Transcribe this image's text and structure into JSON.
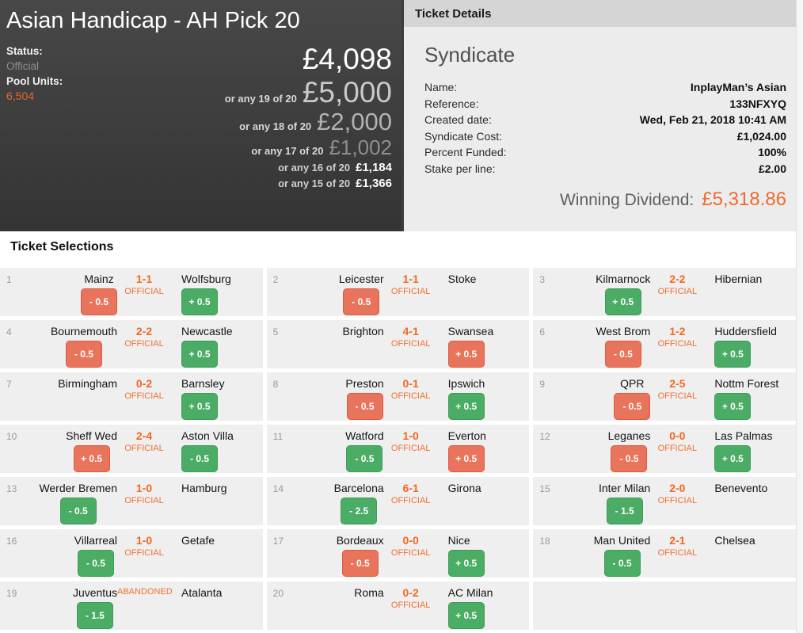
{
  "pool_header": {
    "title": "Asian Handicap - AH Pick 20",
    "status_label": "Status:",
    "status_value": "Official",
    "pool_units_label": "Pool Units:",
    "pool_units_value": "6,504",
    "main_dividend": "£4,098",
    "consolations": [
      {
        "prefix": "or any 19 of 20",
        "amount": "£5,000"
      },
      {
        "prefix": "or any 18 of 20",
        "amount": "£2,000"
      },
      {
        "prefix": "or any 17 of 20",
        "amount": "£1,002"
      },
      {
        "prefix": "or any 16 of 20",
        "amount": "£1,184"
      },
      {
        "prefix": "or any 15 of 20",
        "amount": "£1,366"
      }
    ]
  },
  "ticket_details": {
    "header": "Ticket Details",
    "section_title": "Syndicate",
    "fields": [
      {
        "label": "Name:",
        "value": "InplayMan’s Asian"
      },
      {
        "label": "Reference:",
        "value": "133NFXYQ"
      },
      {
        "label": "Created date:",
        "value": "Wed, Feb 21, 2018 10:41 AM"
      },
      {
        "label": "Syndicate Cost:",
        "value": "£1,024.00"
      },
      {
        "label": "Percent Funded:",
        "value": "100%"
      },
      {
        "label": "Stake per line:",
        "value": "£2.00"
      }
    ],
    "winning_dividend_label": "Winning Dividend:",
    "winning_dividend_value": "£5,318.86"
  },
  "selections": {
    "header": "Ticket Selections",
    "items": [
      {
        "num": "1",
        "home": "Mainz",
        "score": "1-1",
        "status": "OFFICIAL",
        "away": "Wolfsburg",
        "home_badge": {
          "text": "- 0.5",
          "type": "red"
        },
        "away_badge": {
          "text": "+ 0.5",
          "type": "green"
        }
      },
      {
        "num": "2",
        "home": "Leicester",
        "score": "1-1",
        "status": "OFFICIAL",
        "away": "Stoke",
        "home_badge": {
          "text": "- 0.5",
          "type": "red"
        },
        "away_badge": null
      },
      {
        "num": "3",
        "home": "Kilmarnock",
        "score": "2-2",
        "status": "OFFICIAL",
        "away": "Hibernian",
        "home_badge": {
          "text": "+ 0.5",
          "type": "green"
        },
        "away_badge": null
      },
      {
        "num": "4",
        "home": "Bournemouth",
        "score": "2-2",
        "status": "OFFICIAL",
        "away": "Newcastle",
        "home_badge": {
          "text": "- 0.5",
          "type": "red"
        },
        "away_badge": {
          "text": "+ 0.5",
          "type": "green"
        }
      },
      {
        "num": "5",
        "home": "Brighton",
        "score": "4-1",
        "status": "OFFICIAL",
        "away": "Swansea",
        "home_badge": null,
        "away_badge": {
          "text": "+ 0.5",
          "type": "red"
        }
      },
      {
        "num": "6",
        "home": "West Brom",
        "score": "1-2",
        "status": "OFFICIAL",
        "away": "Huddersfield",
        "home_badge": {
          "text": "- 0.5",
          "type": "red"
        },
        "away_badge": {
          "text": "+ 0.5",
          "type": "green"
        }
      },
      {
        "num": "7",
        "home": "Birmingham",
        "score": "0-2",
        "status": "OFFICIAL",
        "away": "Barnsley",
        "home_badge": null,
        "away_badge": {
          "text": "+ 0.5",
          "type": "green"
        }
      },
      {
        "num": "8",
        "home": "Preston",
        "score": "0-1",
        "status": "OFFICIAL",
        "away": "Ipswich",
        "home_badge": {
          "text": "- 0.5",
          "type": "red"
        },
        "away_badge": {
          "text": "+ 0.5",
          "type": "green"
        }
      },
      {
        "num": "9",
        "home": "QPR",
        "score": "2-5",
        "status": "OFFICIAL",
        "away": "Nottm Forest",
        "home_badge": {
          "text": "- 0.5",
          "type": "red"
        },
        "away_badge": {
          "text": "+ 0.5",
          "type": "green"
        }
      },
      {
        "num": "10",
        "home": "Sheff Wed",
        "score": "2-4",
        "status": "OFFICIAL",
        "away": "Aston Villa",
        "home_badge": {
          "text": "+ 0.5",
          "type": "red"
        },
        "away_badge": {
          "text": "- 0.5",
          "type": "green"
        }
      },
      {
        "num": "11",
        "home": "Watford",
        "score": "1-0",
        "status": "OFFICIAL",
        "away": "Everton",
        "home_badge": {
          "text": "- 0.5",
          "type": "green"
        },
        "away_badge": {
          "text": "+ 0.5",
          "type": "red"
        }
      },
      {
        "num": "12",
        "home": "Leganes",
        "score": "0-0",
        "status": "OFFICIAL",
        "away": "Las Palmas",
        "home_badge": {
          "text": "- 0.5",
          "type": "red"
        },
        "away_badge": {
          "text": "+ 0.5",
          "type": "green"
        }
      },
      {
        "num": "13",
        "home": "Werder Bremen",
        "score": "1-0",
        "status": "OFFICIAL",
        "away": "Hamburg",
        "home_badge": {
          "text": "- 0.5",
          "type": "green"
        },
        "away_badge": null
      },
      {
        "num": "14",
        "home": "Barcelona",
        "score": "6-1",
        "status": "OFFICIAL",
        "away": "Girona",
        "home_badge": {
          "text": "- 2.5",
          "type": "green"
        },
        "away_badge": null
      },
      {
        "num": "15",
        "home": "Inter Milan",
        "score": "2-0",
        "status": "OFFICIAL",
        "away": "Benevento",
        "home_badge": {
          "text": "- 1.5",
          "type": "green"
        },
        "away_badge": null
      },
      {
        "num": "16",
        "home": "Villarreal",
        "score": "1-0",
        "status": "OFFICIAL",
        "away": "Getafe",
        "home_badge": {
          "text": "- 0.5",
          "type": "green"
        },
        "away_badge": null
      },
      {
        "num": "17",
        "home": "Bordeaux",
        "score": "0-0",
        "status": "OFFICIAL",
        "away": "Nice",
        "home_badge": {
          "text": "- 0.5",
          "type": "red"
        },
        "away_badge": {
          "text": "+ 0.5",
          "type": "green"
        }
      },
      {
        "num": "18",
        "home": "Man United",
        "score": "2-1",
        "status": "OFFICIAL",
        "away": "Chelsea",
        "home_badge": {
          "text": "- 0.5",
          "type": "green"
        },
        "away_badge": null
      },
      {
        "num": "19",
        "home": "Juventus",
        "score": "",
        "status": "ABANDONED",
        "away": "Atalanta",
        "home_badge": {
          "text": "- 1.5",
          "type": "green"
        },
        "away_badge": null
      },
      {
        "num": "20",
        "home": "Roma",
        "score": "0-2",
        "status": "OFFICIAL",
        "away": "AC Milan",
        "home_badge": null,
        "away_badge": {
          "text": "+ 0.5",
          "type": "green"
        }
      }
    ]
  },
  "colors": {
    "accent_orange": "#f26822",
    "win_green": "#4bac66",
    "lose_red": "#e8745c",
    "panel_dark": "#3d3d3d",
    "panel_light": "#ececec"
  }
}
